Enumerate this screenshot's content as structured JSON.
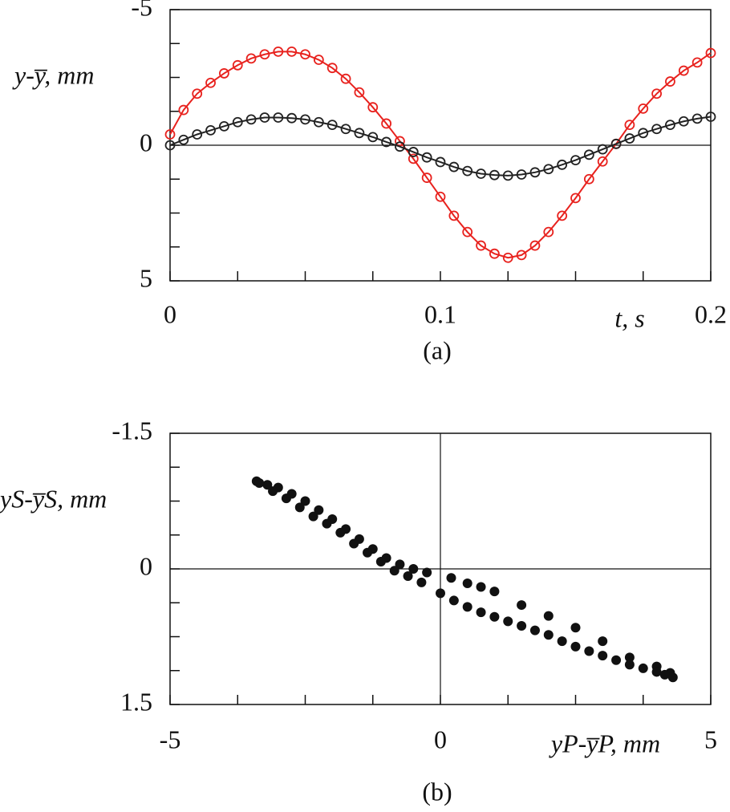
{
  "chart_data": [
    {
      "type": "line",
      "caption": "(a)",
      "ylabel": "y-y̅, mm",
      "xlabel": "t, s",
      "xlim": [
        0,
        0.2
      ],
      "xticks": [
        0,
        0.1,
        0.2
      ],
      "xminorticks": [
        0.025,
        0.05,
        0.075,
        0.125,
        0.15,
        0.175
      ],
      "ylim": [
        5,
        -5
      ],
      "yticks": [
        -5,
        0,
        5
      ],
      "yminorticks": [
        -3.75,
        -2.5,
        -1.25,
        1.25,
        2.5,
        3.75
      ],
      "zero_lines": true,
      "x": [
        0,
        0.005,
        0.01,
        0.015,
        0.02,
        0.025,
        0.03,
        0.035,
        0.04,
        0.045,
        0.05,
        0.055,
        0.06,
        0.065,
        0.07,
        0.075,
        0.08,
        0.085,
        0.09,
        0.095,
        0.1,
        0.105,
        0.11,
        0.115,
        0.12,
        0.125,
        0.13,
        0.135,
        0.14,
        0.145,
        0.15,
        0.155,
        0.16,
        0.165,
        0.17,
        0.175,
        0.18,
        0.185,
        0.19,
        0.195,
        0.2
      ],
      "series": [
        {
          "color": "#e8221e",
          "values": [
            -0.4,
            -1.3,
            -1.9,
            -2.3,
            -2.65,
            -2.95,
            -3.2,
            -3.35,
            -3.45,
            -3.45,
            -3.35,
            -3.15,
            -2.85,
            -2.45,
            -1.95,
            -1.4,
            -0.8,
            -0.15,
            0.5,
            1.2,
            1.9,
            2.6,
            3.2,
            3.7,
            4.0,
            4.15,
            4.05,
            3.7,
            3.2,
            2.6,
            1.95,
            1.25,
            0.6,
            -0.05,
            -0.75,
            -1.35,
            -1.9,
            -2.35,
            -2.75,
            -3.05,
            -3.4
          ]
        },
        {
          "color": "#222222",
          "values": [
            0,
            -0.2,
            -0.4,
            -0.55,
            -0.7,
            -0.85,
            -0.95,
            -1.02,
            -1.02,
            -1.0,
            -0.95,
            -0.85,
            -0.75,
            -0.6,
            -0.45,
            -0.3,
            -0.12,
            0.05,
            0.25,
            0.45,
            0.62,
            0.8,
            0.95,
            1.05,
            1.1,
            1.12,
            1.08,
            1.0,
            0.88,
            0.72,
            0.55,
            0.35,
            0.15,
            -0.05,
            -0.25,
            -0.45,
            -0.6,
            -0.75,
            -0.88,
            -0.98,
            -1.05
          ]
        }
      ]
    },
    {
      "type": "scatter",
      "caption": "(b)",
      "ylabel": "yS-y̅S, mm",
      "xlabel": "yP-y̅P, mm",
      "xlim": [
        -5,
        5
      ],
      "xticks": [
        -5,
        0,
        5
      ],
      "xminorticks": [
        -3.75,
        -2.5,
        -1.25,
        1.25,
        2.5,
        3.75
      ],
      "ylim": [
        1.5,
        -1.5
      ],
      "yticks": [
        -1.5,
        0,
        1.5
      ],
      "yminorticks": [
        -1.125,
        -0.75,
        -0.375,
        0.375,
        0.75,
        1.125
      ],
      "zero_lines": true,
      "color": "#111111",
      "x": [
        -3.4,
        -3.2,
        -3.0,
        -2.75,
        -2.5,
        -2.25,
        -2.0,
        -1.75,
        -1.5,
        -1.25,
        -1.0,
        -0.75,
        -0.5,
        -0.25,
        0.2,
        0.5,
        0.75,
        1.0,
        1.5,
        2.0,
        2.5,
        3.0,
        3.5,
        4.0,
        4.25,
        -3.35,
        -3.1,
        -2.85,
        -2.6,
        -2.35,
        -2.1,
        -1.85,
        -1.6,
        -1.35,
        -1.1,
        -0.85,
        -0.6,
        -0.35,
        0.0,
        0.25,
        0.5,
        0.75,
        1.0,
        1.25,
        1.5,
        1.75,
        2.0,
        2.25,
        2.5,
        2.75,
        3.0,
        3.25,
        3.5,
        3.75,
        4.0,
        4.15,
        4.3
      ],
      "values": [
        -0.97,
        -0.93,
        -0.9,
        -0.83,
        -0.75,
        -0.65,
        -0.55,
        -0.44,
        -0.33,
        -0.22,
        -0.12,
        -0.05,
        0.0,
        0.04,
        0.1,
        0.16,
        0.2,
        0.25,
        0.4,
        0.52,
        0.65,
        0.8,
        0.98,
        1.08,
        1.15,
        -0.95,
        -0.86,
        -0.78,
        -0.68,
        -0.58,
        -0.5,
        -0.4,
        -0.28,
        -0.18,
        -0.08,
        0.02,
        0.08,
        0.15,
        0.27,
        0.35,
        0.42,
        0.48,
        0.53,
        0.58,
        0.63,
        0.68,
        0.73,
        0.8,
        0.86,
        0.91,
        0.96,
        1.01,
        1.06,
        1.1,
        1.14,
        1.17,
        1.2
      ]
    }
  ]
}
